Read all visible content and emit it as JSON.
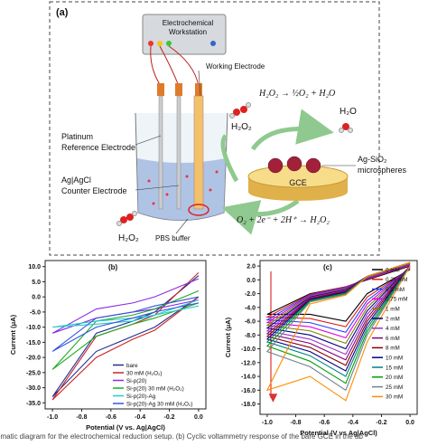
{
  "figure_a": {
    "panel_label": "(a)",
    "workstation": [
      "Electrochemical",
      "Workstation"
    ],
    "working_electrode": "Working Electrode",
    "reference_electrode": [
      "Platinum",
      "Reference Electrode"
    ],
    "counter_electrode": [
      "Ag|AgCl",
      "Counter Electrode"
    ],
    "pbs": "PBS buffer",
    "h2o2_left": "H₂O₂",
    "h2o2_right": "H₂O₂",
    "decomposition": "H₂O₂ → ½O₂ + H₂O",
    "water": "H₂O",
    "gce": "GCE",
    "microspheres": [
      "Ag-SiO₂",
      "microspheres"
    ],
    "reduction": "O₂ + 2e⁻ + 2H⁺ → H₂O₂"
  },
  "chart_data": [
    {
      "type": "line",
      "panel_label": "(b)",
      "x_label": "Potential (V vs. Ag|AgCl)",
      "y_label": "Current (μA)",
      "legend": "lower right",
      "x": [
        0,
        -0.3,
        -0.45,
        -0.7,
        -1,
        -0.7,
        -0.45,
        -0.3,
        0
      ],
      "xlim": [
        -1.05,
        0.05
      ],
      "xticks": [
        {
          "value": -1,
          "label": "-1.0"
        },
        -0.8,
        -0.6,
        -0.4,
        -0.2,
        {
          "value": 0,
          "label": "0.0"
        }
      ],
      "ylim": [
        -37,
        12
      ],
      "yticks": [
        {
          "value": 10,
          "label": "10.0"
        },
        {
          "value": 5,
          "label": "5.0"
        },
        {
          "value": 0,
          "label": "0.0"
        },
        {
          "value": -5,
          "label": "-5.0"
        },
        {
          "value": -10,
          "label": "-10.0"
        },
        {
          "value": -15,
          "label": "-15.0"
        },
        {
          "value": -20,
          "label": "-20.0"
        },
        {
          "value": -25,
          "label": "-25.0"
        },
        {
          "value": -30,
          "label": "-30.0"
        },
        {
          "value": -35,
          "label": "-35.0"
        }
      ],
      "series": [
        {
          "name": "bare",
          "color": "#1f2f8f",
          "values": [
            0,
            -10,
            -13,
            -18,
            -33,
            -12,
            -8,
            -5,
            7
          ]
        },
        {
          "name": "30 mM (H₂O₂)",
          "color": "#cc2222",
          "values": [
            0,
            -11,
            -14,
            -20,
            -34,
            -13,
            -9,
            -6,
            8
          ]
        },
        {
          "name": "Si-p(20)",
          "color": "#8a2be2",
          "values": [
            -1,
            -4,
            -5,
            -7,
            -12,
            -4,
            -2,
            0,
            6
          ]
        },
        {
          "name": "Si-p(20) 30 mM (H₂O₂)",
          "color": "#22aa22",
          "values": [
            -2,
            -7,
            -9,
            -13,
            -24,
            -8,
            -6,
            -4,
            2
          ]
        },
        {
          "name": "Si-p(20)-Ag",
          "color": "#22cccc",
          "values": [
            -3,
            -6,
            -7,
            -8,
            -10,
            -9,
            -8,
            -6,
            -1
          ]
        },
        {
          "name": "Si-p(20)-Ag 30 mM (H₂O₂)",
          "color": "#3355dd",
          "values": [
            -2,
            -5,
            -7,
            -10,
            -18,
            -7,
            -5,
            -3,
            0
          ]
        }
      ]
    },
    {
      "type": "line",
      "panel_label": "(c)",
      "x_label": "Potential (V vs Ag|AgCl)",
      "y_label": "Current (μA)",
      "legend": "upper right",
      "x": [
        0,
        -0.3,
        -0.45,
        -0.7,
        -1,
        -0.7,
        -0.45,
        -0.3,
        0
      ],
      "xlim": [
        -1.05,
        0.05
      ],
      "xticks": [
        {
          "value": -1,
          "label": "-1.0"
        },
        -0.8,
        -0.6,
        -0.4,
        -0.2,
        {
          "value": 0,
          "label": "0.0"
        }
      ],
      "ylim": [
        -19.5,
        2.8
      ],
      "yticks": [
        {
          "value": 2,
          "label": "2.0"
        },
        {
          "value": 0,
          "label": "0.0"
        },
        {
          "value": -2,
          "label": "-2.0"
        },
        {
          "value": -4,
          "label": "-4.0"
        },
        {
          "value": -6,
          "label": "-6.0"
        },
        {
          "value": -8,
          "label": "-8.0"
        },
        {
          "value": -10,
          "label": "-10.0"
        },
        {
          "value": -12,
          "label": "-12.0"
        },
        {
          "value": -14,
          "label": "-14.0"
        },
        {
          "value": -16,
          "label": "-16.0"
        },
        {
          "value": -18,
          "label": "-18.0"
        }
      ],
      "series": [
        {
          "name": "0 mM",
          "color": "#000000",
          "values": [
            1.5,
            -2.0,
            -6.0,
            -5.0,
            -5.0,
            -2.0,
            -1.0,
            0.0,
            2.0
          ]
        },
        {
          "name": "0.25 mM",
          "color": "#e41a1c",
          "values": [
            1.6,
            -2.5,
            -6.8,
            -5.6,
            -5.4,
            -2.1,
            -1.0,
            0.1,
            2.1
          ]
        },
        {
          "name": "0.5 mM",
          "color": "#1f3fff",
          "values": [
            1.7,
            -3.0,
            -7.6,
            -6.2,
            -5.8,
            -2.2,
            -1.1,
            0.2,
            2.2
          ]
        },
        {
          "name": "0.75 mM",
          "color": "#e000e0",
          "values": [
            1.8,
            -3.5,
            -8.4,
            -6.8,
            -6.2,
            -2.3,
            -1.2,
            0.3,
            2.3
          ]
        },
        {
          "name": "1 mM",
          "color": "#808000",
          "values": [
            1.9,
            -4.0,
            -9.2,
            -7.4,
            -6.6,
            -2.4,
            -1.3,
            0.4,
            2.4
          ]
        },
        {
          "name": "2 mM",
          "color": "#000080",
          "values": [
            2.0,
            -4.5,
            -10.0,
            -8.0,
            -7.0,
            -2.5,
            -1.4,
            0.5,
            2.5
          ]
        },
        {
          "name": "4 mM",
          "color": "#9932cc",
          "values": [
            2.0,
            -5.0,
            -10.8,
            -8.6,
            -7.4,
            -2.6,
            -1.5,
            0.5,
            2.5
          ]
        },
        {
          "name": "6 mM",
          "color": "#800080",
          "values": [
            2.0,
            -5.5,
            -11.6,
            -9.2,
            -7.8,
            -2.7,
            -1.6,
            0.5,
            2.5
          ]
        },
        {
          "name": "8 mM",
          "color": "#8b0000",
          "values": [
            2.0,
            -6.0,
            -12.4,
            -9.8,
            -8.2,
            -2.8,
            -1.7,
            0.5,
            2.5
          ]
        },
        {
          "name": "10 mM",
          "color": "#00008b",
          "values": [
            2.0,
            -6.5,
            -13.2,
            -10.4,
            -8.6,
            -2.9,
            -1.8,
            0.5,
            2.5
          ]
        },
        {
          "name": "15 mM",
          "color": "#008080",
          "values": [
            2.0,
            -7.0,
            -14.0,
            -11.0,
            -9.0,
            -3.0,
            -1.9,
            0.5,
            2.5
          ]
        },
        {
          "name": "20 mM",
          "color": "#00a000",
          "values": [
            2.0,
            -7.5,
            -15.0,
            -11.8,
            -9.6,
            -3.1,
            -2.0,
            0.5,
            2.5
          ]
        },
        {
          "name": "25 mM",
          "color": "#708090",
          "values": [
            2.0,
            -8.0,
            -16.0,
            -12.6,
            -10.4,
            -3.2,
            -2.1,
            0.5,
            2.5
          ]
        },
        {
          "name": "30 mM",
          "color": "#ff8c00",
          "values": [
            2.0,
            -9.0,
            -17.5,
            -14.0,
            -16.0,
            -3.5,
            -2.2,
            0.5,
            2.5
          ]
        }
      ]
    }
  ],
  "caption": "ematic diagram for the electrochemical reduction setup. (b) Cyclic voltammetry response of the bare GCE in the ab"
}
